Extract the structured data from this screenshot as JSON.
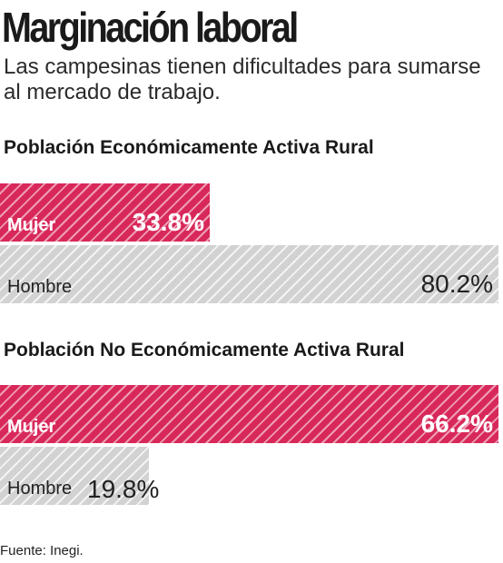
{
  "title": "Marginación laboral",
  "subtitle": "Las campesinas tienen dificultades para sumarse al mercado de trabajo.",
  "source": "Fuente: Inegi.",
  "colors": {
    "mujer": "#d8285a",
    "hombre": "#d2d2d2"
  },
  "chart_data": [
    {
      "type": "bar",
      "orientation": "horizontal",
      "title": "Población Económicamente Activa Rural",
      "categories": [
        "Mujer",
        "Hombre"
      ],
      "values": [
        33.8,
        80.2
      ],
      "value_labels": [
        "33.8%",
        "80.2%"
      ],
      "xlim": [
        0,
        80.2
      ],
      "unit": "%"
    },
    {
      "type": "bar",
      "orientation": "horizontal",
      "title": "Población No Económicamente Activa Rural",
      "categories": [
        "Mujer",
        "Hombre"
      ],
      "values": [
        66.2,
        19.8
      ],
      "value_labels": [
        "66.2%",
        "19.8%"
      ],
      "xlim": [
        0,
        66.2
      ],
      "unit": "%"
    }
  ]
}
